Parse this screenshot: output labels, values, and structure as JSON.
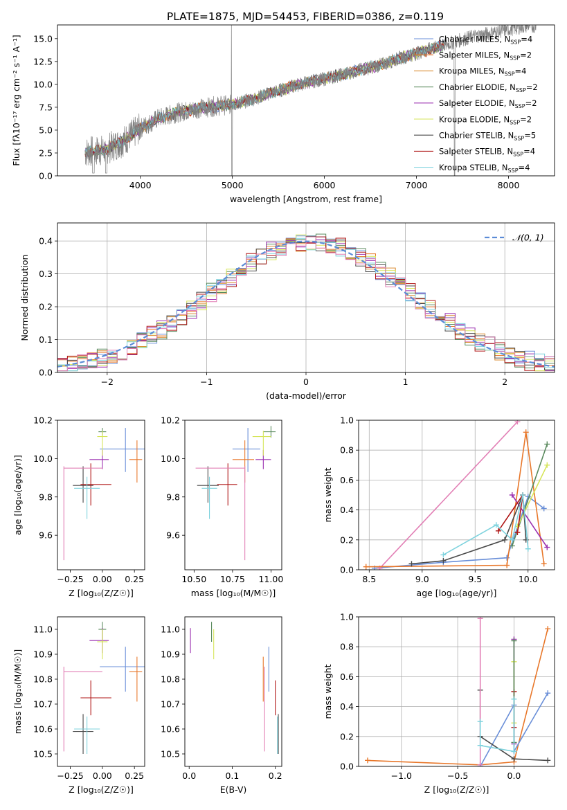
{
  "title": "PLATE=1875, MJD=54453, FIBERID=0386, z=0.119",
  "legend_spectrum": [
    {
      "name": "Chabrier MILES, N",
      "sub": "SSP",
      "tail": "=4",
      "color": "#6a8fd8"
    },
    {
      "name": "Salpeter MILES, N",
      "sub": "SSP",
      "tail": "=2",
      "color": "#e8772a"
    },
    {
      "name": "Kroupa MILES, N",
      "sub": "SSP",
      "tail": "=4",
      "color": "#d98a2e"
    },
    {
      "name": "Chabrier ELODIE, N",
      "sub": "SSP",
      "tail": "=2",
      "color": "#5a8a5e"
    },
    {
      "name": "Salpeter ELODIE, N",
      "sub": "SSP",
      "tail": "=2",
      "color": "#9b30b0"
    },
    {
      "name": "Kroupa ELODIE, N",
      "sub": "SSP",
      "tail": "=2",
      "color": "#d6e55a"
    },
    {
      "name": "Chabrier STELIB, N",
      "sub": "SSP",
      "tail": "=5",
      "color": "#4a4a4a"
    },
    {
      "name": "Salpeter STELIB, N",
      "sub": "SSP",
      "tail": "=4",
      "color": "#b01818"
    },
    {
      "name": "Kroupa STELIB, N",
      "sub": "SSP",
      "tail": "=4",
      "color": "#7fd3de"
    }
  ],
  "legend_hist": "𝒩(0, 1)",
  "colors": {
    "data": "#808080",
    "gauss": "#5b8bd6",
    "grid": "#b0b0b0",
    "pink": "#e27fb5"
  },
  "chart_data": [
    {
      "id": "spectrum",
      "type": "line",
      "xlabel": "wavelength [Angstrom, rest frame]",
      "ylabel": "Flux [fλ10⁻¹⁷ erg cm⁻² s⁻¹ A⁻¹]",
      "xlim": [
        3100,
        8500
      ],
      "ylim": [
        0,
        16.5
      ],
      "xticks": [
        4000,
        5000,
        6000,
        7000,
        8000
      ],
      "yticks": [
        0.0,
        2.5,
        5.0,
        7.5,
        10.0,
        12.5,
        15.0
      ],
      "ytick_labels": [
        "0.0",
        "2.5",
        "5.0",
        "7.5",
        "10.0",
        "12.5",
        "15.0"
      ],
      "x": [
        3400,
        3600,
        3800,
        4000,
        4200,
        4400,
        4600,
        4800,
        5000,
        5200,
        5400,
        5600,
        5800,
        6000,
        6200,
        6400,
        6600,
        6800,
        7000,
        7200,
        7400,
        7600,
        7800,
        8000,
        8200
      ],
      "y": [
        2.6,
        2.8,
        3.7,
        5.2,
        6.3,
        6.9,
        7.3,
        7.6,
        7.8,
        8.3,
        9.0,
        9.6,
        10.2,
        10.6,
        11.1,
        11.6,
        12.1,
        12.8,
        13.4,
        14.0,
        14.6,
        15.2,
        15.6,
        16.0,
        16.4
      ],
      "grid": false,
      "legend": "top-right"
    },
    {
      "id": "residuals",
      "type": "histogram",
      "xlabel": "(data-model)/error",
      "ylabel": "Normed distribution",
      "xlim": [
        -2.5,
        2.5
      ],
      "ylim": [
        0,
        0.455
      ],
      "xticks": [
        -2,
        -1,
        0,
        1,
        2
      ],
      "xtick_labels": [
        "−2",
        "−1",
        "0",
        "1",
        "2"
      ],
      "yticks": [
        0.0,
        0.1,
        0.2,
        0.3,
        0.4
      ],
      "ytick_labels": [
        "0.0",
        "0.1",
        "0.2",
        "0.3",
        "0.4"
      ],
      "bin_width": 0.1,
      "grid": true,
      "legend": "top-right"
    },
    {
      "id": "age_vs_Z",
      "type": "errorbar",
      "xlabel": "Z [log₁₀(Z/Z☉)]",
      "ylabel": "age [log₁₀(age/yr)]",
      "xlim": [
        -0.35,
        0.33
      ],
      "ylim": [
        9.42,
        10.2
      ],
      "xticks": [
        -0.25,
        0.0,
        0.25
      ],
      "xtick_labels": [
        "−0.25",
        "0.00",
        "0.25"
      ],
      "yticks": [
        9.6,
        9.8,
        10.0,
        10.2
      ],
      "ytick_labels": [
        "9.6",
        "9.8",
        "10.0",
        "10.2"
      ],
      "points": [
        {
          "x": 0.18,
          "y": 10.05,
          "ex": [
            0.2,
            0.18
          ],
          "ey": [
            0.12,
            0.11
          ],
          "color": "#6a8fd8"
        },
        {
          "x": 0.27,
          "y": 9.995,
          "ex": [
            0.06,
            0.04
          ],
          "ey": [
            0.12,
            0.1
          ],
          "color": "#e8772a"
        },
        {
          "x": 0.0,
          "y": 10.14,
          "ex": [
            0.03,
            0.03
          ],
          "ey": [
            0.02,
            0.02
          ],
          "color": "#5a8a5e"
        },
        {
          "x": 0.0,
          "y": 9.995,
          "ex": [
            0.1,
            0.05
          ],
          "ey": [
            0.05,
            0.05
          ],
          "color": "#9b30b0"
        },
        {
          "x": 0.0,
          "y": 10.115,
          "ex": [
            0.04,
            0.04
          ],
          "ey": [
            0.1,
            0.03
          ],
          "color": "#d6e55a"
        },
        {
          "x": -0.15,
          "y": 9.86,
          "ex": [
            0.08,
            0.08
          ],
          "ey": [
            0.09,
            0.1
          ],
          "color": "#4a4a4a"
        },
        {
          "x": -0.09,
          "y": 9.865,
          "ex": [
            0.08,
            0.16
          ],
          "ey": [
            0.11,
            0.11
          ],
          "color": "#b01818"
        },
        {
          "x": -0.12,
          "y": 9.845,
          "ex": [
            0.1,
            0.1
          ],
          "ey": [
            0.16,
            0.06
          ],
          "color": "#7fd3de"
        },
        {
          "x": -0.3,
          "y": 9.95,
          "ex": [
            0.0,
            0.3
          ],
          "ey": [
            0.48,
            0.01
          ],
          "color": "#e27fb5"
        }
      ]
    },
    {
      "id": "age_vs_mass",
      "type": "errorbar",
      "xlabel": "mass [log₁₀(M/M☉)]",
      "xlim": [
        10.44,
        11.07
      ],
      "ylim": [
        9.42,
        10.2
      ],
      "xticks": [
        10.5,
        10.75,
        11.0
      ],
      "xtick_labels": [
        "10.50",
        "10.75",
        "11.00"
      ],
      "yticks": [
        9.6,
        9.8,
        10.0,
        10.2
      ],
      "ytick_labels": [
        "9.6",
        "9.8",
        "10.0",
        "10.2"
      ],
      "points": [
        {
          "x": 10.85,
          "y": 10.05,
          "ex": [
            0.1,
            0.08
          ],
          "ey": [
            0.12,
            0.11
          ],
          "color": "#6a8fd8"
        },
        {
          "x": 10.83,
          "y": 9.995,
          "ex": [
            0.08,
            0.06
          ],
          "ey": [
            0.12,
            0.1
          ],
          "color": "#e8772a"
        },
        {
          "x": 11.0,
          "y": 10.14,
          "ex": [
            0.05,
            0.03
          ],
          "ey": [
            0.03,
            0.03
          ],
          "color": "#5a8a5e"
        },
        {
          "x": 10.95,
          "y": 9.995,
          "ex": [
            0.05,
            0.05
          ],
          "ey": [
            0.05,
            0.05
          ],
          "color": "#9b30b0"
        },
        {
          "x": 10.95,
          "y": 10.115,
          "ex": [
            0.07,
            0.05
          ],
          "ey": [
            0.1,
            0.03
          ],
          "color": "#d6e55a"
        },
        {
          "x": 10.59,
          "y": 9.86,
          "ex": [
            0.07,
            0.07
          ],
          "ey": [
            0.09,
            0.1
          ],
          "color": "#4a4a4a"
        },
        {
          "x": 10.72,
          "y": 9.865,
          "ex": [
            0.07,
            0.06
          ],
          "ey": [
            0.11,
            0.11
          ],
          "color": "#b01818"
        },
        {
          "x": 10.6,
          "y": 9.845,
          "ex": [
            0.05,
            0.05
          ],
          "ey": [
            0.16,
            0.06
          ],
          "color": "#7fd3de"
        },
        {
          "x": 10.83,
          "y": 9.95,
          "ex": [
            0.32,
            0.0
          ],
          "ey": [
            0.48,
            0.01
          ],
          "color": "#e27fb5"
        }
      ]
    },
    {
      "id": "massweight_vs_age",
      "type": "line",
      "xlabel": "age [log₁₀(age/yr)]",
      "ylabel": "mass weight",
      "xlim": [
        8.4,
        10.25
      ],
      "ylim": [
        0,
        1
      ],
      "xticks": [
        8.5,
        9.0,
        9.5,
        10.0
      ],
      "xtick_labels": [
        "8.5",
        "9.0",
        "9.5",
        "10.0"
      ],
      "yticks": [
        0,
        0.2,
        0.4,
        0.6,
        0.8,
        1.0
      ],
      "ytick_labels": [
        "0.0",
        "0.2",
        "0.4",
        "0.6",
        "0.8",
        "1.0"
      ],
      "grid": true,
      "series": [
        {
          "color": "#6a8fd8",
          "x": [
            8.55,
            9.2,
            9.8,
            10.0,
            10.15
          ],
          "y": [
            0.01,
            0.05,
            0.08,
            0.49,
            0.41
          ]
        },
        {
          "color": "#e27fb5",
          "x": [
            8.6,
            9.9
          ],
          "y": [
            0.01,
            0.99
          ]
        },
        {
          "color": "#e8772a",
          "x": [
            8.47,
            9.8,
            9.98,
            10.15
          ],
          "y": [
            0.02,
            0.03,
            0.92,
            0.04
          ]
        },
        {
          "color": "#5a8a5e",
          "x": [
            9.85,
            10.18
          ],
          "y": [
            0.16,
            0.84
          ]
        },
        {
          "color": "#9b30b0",
          "x": [
            9.85,
            10.18
          ],
          "y": [
            0.5,
            0.15
          ]
        },
        {
          "color": "#d6e55a",
          "x": [
            9.9,
            10.18
          ],
          "y": [
            0.29,
            0.7
          ]
        },
        {
          "color": "#4a4a4a",
          "x": [
            8.9,
            9.2,
            9.78,
            9.95,
            9.98
          ],
          "y": [
            0.04,
            0.06,
            0.2,
            0.5,
            0.2
          ]
        },
        {
          "color": "#b01818",
          "x": [
            9.72,
            9.95,
            9.9
          ],
          "y": [
            0.26,
            0.5,
            0.25
          ]
        },
        {
          "color": "#7fd3de",
          "x": [
            9.2,
            9.7,
            9.85,
            9.95,
            10.0
          ],
          "y": [
            0.1,
            0.3,
            0.2,
            0.5,
            0.14
          ]
        }
      ]
    },
    {
      "id": "mass_vs_Z",
      "type": "errorbar",
      "xlabel": "Z [log₁₀(Z/Z☉)]",
      "ylabel": "mass [log₁₀(M/M☉)]",
      "xlim": [
        -0.35,
        0.33
      ],
      "ylim": [
        10.45,
        11.05
      ],
      "xticks": [
        -0.25,
        0.0,
        0.25
      ],
      "xtick_labels": [
        "−0.25",
        "0.00",
        "0.25"
      ],
      "yticks": [
        10.5,
        10.6,
        10.7,
        10.8,
        10.9,
        11.0
      ],
      "ytick_labels": [
        "10.5",
        "10.6",
        "10.7",
        "10.8",
        "10.9",
        "11.0"
      ],
      "points": [
        {
          "x": 0.18,
          "y": 10.85,
          "ex": [
            0.2,
            0.18
          ],
          "ey": [
            0.1,
            0.08
          ],
          "color": "#6a8fd8"
        },
        {
          "x": 0.27,
          "y": 10.83,
          "ex": [
            0.06,
            0.04
          ],
          "ey": [
            0.12,
            0.06
          ],
          "color": "#e8772a"
        },
        {
          "x": 0.0,
          "y": 11.0,
          "ex": [
            0.03,
            0.03
          ],
          "ey": [
            0.05,
            0.03
          ],
          "color": "#5a8a5e"
        },
        {
          "x": 0.0,
          "y": 10.955,
          "ex": [
            0.1,
            0.05
          ],
          "ey": [
            0.05,
            0.05
          ],
          "color": "#9b30b0"
        },
        {
          "x": 0.0,
          "y": 10.95,
          "ex": [
            0.04,
            0.04
          ],
          "ey": [
            0.07,
            0.05
          ],
          "color": "#d6e55a"
        },
        {
          "x": -0.15,
          "y": 10.59,
          "ex": [
            0.08,
            0.08
          ],
          "ey": [
            0.09,
            0.07
          ],
          "color": "#4a4a4a"
        },
        {
          "x": -0.09,
          "y": 10.725,
          "ex": [
            0.08,
            0.16
          ],
          "ey": [
            0.07,
            0.07
          ],
          "color": "#b01818"
        },
        {
          "x": -0.12,
          "y": 10.6,
          "ex": [
            0.1,
            0.1
          ],
          "ey": [
            0.1,
            0.05
          ],
          "color": "#7fd3de"
        },
        {
          "x": -0.3,
          "y": 10.83,
          "ex": [
            0.0,
            0.3
          ],
          "ey": [
            0.32,
            0.02
          ],
          "color": "#e27fb5"
        }
      ]
    },
    {
      "id": "mass_vs_ebv",
      "type": "errorbar",
      "xlabel": "E(B-V)",
      "xlim": [
        -0.01,
        0.215
      ],
      "ylim": [
        10.45,
        11.05
      ],
      "xticks": [
        0.0,
        0.1,
        0.2
      ],
      "xtick_labels": [
        "0.0",
        "0.1",
        "0.2"
      ],
      "yticks": [
        10.5,
        10.6,
        10.7,
        10.8,
        10.9,
        11.0
      ],
      "ytick_labels": [
        "10.5",
        "10.6",
        "10.7",
        "10.8",
        "10.9",
        "11.0"
      ],
      "points": [
        {
          "x": 0.185,
          "y": 10.85,
          "ex": [
            0,
            0
          ],
          "ey": [
            0.1,
            0.08
          ],
          "color": "#6a8fd8"
        },
        {
          "x": 0.172,
          "y": 10.83,
          "ex": [
            0,
            0
          ],
          "ey": [
            0.12,
            0.06
          ],
          "color": "#e8772a"
        },
        {
          "x": 0.052,
          "y": 11.0,
          "ex": [
            0,
            0
          ],
          "ey": [
            0.05,
            0.03
          ],
          "color": "#5a8a5e"
        },
        {
          "x": 0.003,
          "y": 10.955,
          "ex": [
            0,
            0
          ],
          "ey": [
            0.05,
            0.05
          ],
          "color": "#9b30b0"
        },
        {
          "x": 0.057,
          "y": 10.95,
          "ex": [
            0,
            0
          ],
          "ey": [
            0.07,
            0.05
          ],
          "color": "#d6e55a"
        },
        {
          "x": 0.207,
          "y": 10.59,
          "ex": [
            0,
            0
          ],
          "ey": [
            0.09,
            0.07
          ],
          "color": "#4a4a4a"
        },
        {
          "x": 0.2,
          "y": 10.725,
          "ex": [
            0,
            0
          ],
          "ey": [
            0.07,
            0.07
          ],
          "color": "#b01818"
        },
        {
          "x": 0.205,
          "y": 10.6,
          "ex": [
            0,
            0
          ],
          "ey": [
            0.1,
            0.05
          ],
          "color": "#7fd3de"
        },
        {
          "x": 0.175,
          "y": 10.83,
          "ex": [
            0,
            0
          ],
          "ey": [
            0.32,
            0.02
          ],
          "color": "#e27fb5"
        }
      ]
    },
    {
      "id": "massweight_vs_Z",
      "type": "line",
      "xlabel": "Z [log₁₀(Z/Z☉)]",
      "ylabel": "mass weight",
      "xlim": [
        -1.38,
        0.36
      ],
      "ylim": [
        0,
        1
      ],
      "xticks": [
        -1.0,
        -0.5,
        0.0
      ],
      "xtick_labels": [
        "−1.0",
        "−0.5",
        "0.0"
      ],
      "yticks": [
        0,
        0.2,
        0.4,
        0.6,
        0.8,
        1.0
      ],
      "ytick_labels": [
        "0.0",
        "0.2",
        "0.4",
        "0.6",
        "0.8",
        "1.0"
      ],
      "grid": true,
      "series": [
        {
          "color": "#e8772a",
          "x": [
            -1.3,
            -0.3,
            0.0,
            0.3
          ],
          "y": [
            0.04,
            0.01,
            0.03,
            0.92
          ]
        },
        {
          "color": "#6a8fd8",
          "x": [
            -0.3,
            0.0,
            0.0,
            0.3
          ],
          "y": [
            0.0,
            0.41,
            0.1,
            0.49
          ]
        },
        {
          "color": "#4a4a4a",
          "x": [
            -0.3,
            -0.3,
            0.0,
            0.3
          ],
          "y": [
            0.51,
            0.2,
            0.05,
            0.04
          ]
        },
        {
          "color": "#e27fb5",
          "x": [
            -0.3,
            -0.3
          ],
          "y": [
            0.01,
            0.99
          ]
        },
        {
          "color": "#9b30b0",
          "x": [
            0.0,
            0.0
          ],
          "y": [
            0.15,
            0.85
          ]
        },
        {
          "color": "#d6e55a",
          "x": [
            0.0,
            0.0
          ],
          "y": [
            0.29,
            0.7
          ]
        },
        {
          "color": "#b01818",
          "x": [
            0.0,
            0.0
          ],
          "y": [
            0.26,
            0.5
          ]
        },
        {
          "color": "#5a8a5e",
          "x": [
            0.0,
            0.0
          ],
          "y": [
            0.16,
            0.84
          ]
        },
        {
          "color": "#7fd3de",
          "x": [
            -0.3,
            -0.3,
            0.0,
            0.0
          ],
          "y": [
            0.3,
            0.14,
            0.1,
            0.45
          ]
        }
      ]
    }
  ]
}
